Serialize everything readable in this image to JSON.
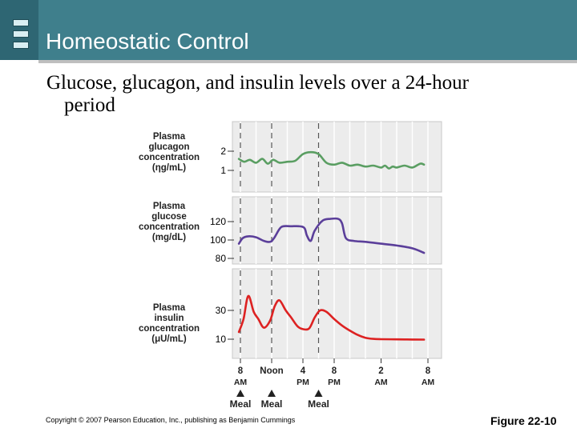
{
  "slide": {
    "title": "Homeostatic Control",
    "subtitle_line1": "Glucose, glucagon, and insulin levels over a 24-hour",
    "subtitle_line2": "period",
    "copyright": "Copyright © 2007 Pearson Education, Inc., publishing as Benjamin Cummings",
    "figure_label": "Figure 22-10"
  },
  "chart_data": {
    "type": "line",
    "x_hours": [
      8,
      9,
      10,
      11,
      12,
      13,
      14,
      15,
      16,
      17,
      18,
      19,
      20,
      21,
      22,
      23,
      0,
      1,
      2,
      3,
      4,
      5,
      6,
      7,
      8
    ],
    "x_ticks": [
      {
        "hour": 8,
        "label_top": "8",
        "label_bottom": "AM"
      },
      {
        "hour": 12,
        "label_top": "Noon",
        "label_bottom": ""
      },
      {
        "hour": 16,
        "label_top": "4",
        "label_bottom": "PM"
      },
      {
        "hour": 20,
        "label_top": "8",
        "label_bottom": "PM"
      },
      {
        "hour": 26,
        "label_top": "2",
        "label_bottom": "AM"
      },
      {
        "hour": 32,
        "label_top": "8",
        "label_bottom": "AM"
      }
    ],
    "meals": [
      {
        "hour": 8,
        "label": "Meal"
      },
      {
        "hour": 12,
        "label": "Meal"
      },
      {
        "hour": 18,
        "label": "Meal"
      }
    ],
    "panels": [
      {
        "name": "glucagon",
        "label_lines": [
          "Plasma",
          "glucagon",
          "concentration",
          "(ηg/mL)"
        ],
        "y_ticks": [
          1,
          2
        ],
        "ylim": [
          0.5,
          2.5
        ],
        "color": "#5a9e62",
        "x": [
          7.8,
          8.5,
          9.2,
          10,
          10.8,
          11.5,
          12.2,
          13,
          14,
          15,
          16,
          17,
          18,
          19,
          20,
          21,
          22,
          23,
          24,
          25,
          26,
          26.5,
          27,
          27.5,
          28,
          29,
          30,
          31,
          31.5
        ],
        "y": [
          1.6,
          1.45,
          1.55,
          1.4,
          1.6,
          1.35,
          1.55,
          1.4,
          1.45,
          1.5,
          1.85,
          1.95,
          1.85,
          1.4,
          1.3,
          1.4,
          1.25,
          1.3,
          1.2,
          1.25,
          1.15,
          1.25,
          1.1,
          1.2,
          1.15,
          1.25,
          1.15,
          1.35,
          1.3
        ]
      },
      {
        "name": "glucose",
        "label_lines": [
          "Plasma",
          "glucose",
          "concentration",
          "(mg/dL)"
        ],
        "y_ticks": [
          80,
          100,
          120
        ],
        "ylim": [
          72,
          131
        ],
        "color": "#5b3f9a",
        "x": [
          7.8,
          8.3,
          9,
          10,
          11,
          11.8,
          12.3,
          13,
          13.5,
          14.5,
          15.5,
          16.2,
          16.5,
          17,
          17.5,
          18.5,
          19.5,
          20.5,
          21,
          21.5,
          22.5,
          24,
          26,
          28,
          30,
          31.5
        ],
        "y": [
          96,
          102,
          104,
          103,
          99,
          98,
          102,
          112,
          115,
          115,
          115,
          113,
          105,
          99,
          110,
          121,
          123,
          123,
          118,
          102,
          99,
          98,
          96,
          94,
          91,
          86
        ]
      },
      {
        "name": "insulin",
        "label_lines": [
          "Plasma",
          "insulin",
          "concentration",
          "(μU/mL)"
        ],
        "y_ticks": [
          10,
          30
        ],
        "ylim": [
          0,
          45
        ],
        "color": "#dd2222",
        "x": [
          7.8,
          8.4,
          9,
          9.7,
          10.3,
          11,
          11.8,
          12.4,
          13,
          13.8,
          14.5,
          15.3,
          16,
          16.8,
          17.5,
          18.2,
          19,
          20,
          21,
          22,
          23,
          24,
          25,
          26,
          28,
          30,
          31.5
        ],
        "y": [
          15,
          24,
          40,
          29,
          24,
          18,
          23,
          33,
          37,
          30,
          25,
          19,
          17,
          17.5,
          25,
          30,
          29,
          24,
          19.5,
          16,
          13,
          11,
          10.2,
          10,
          9.9,
          9.8,
          9.7
        ]
      }
    ]
  }
}
